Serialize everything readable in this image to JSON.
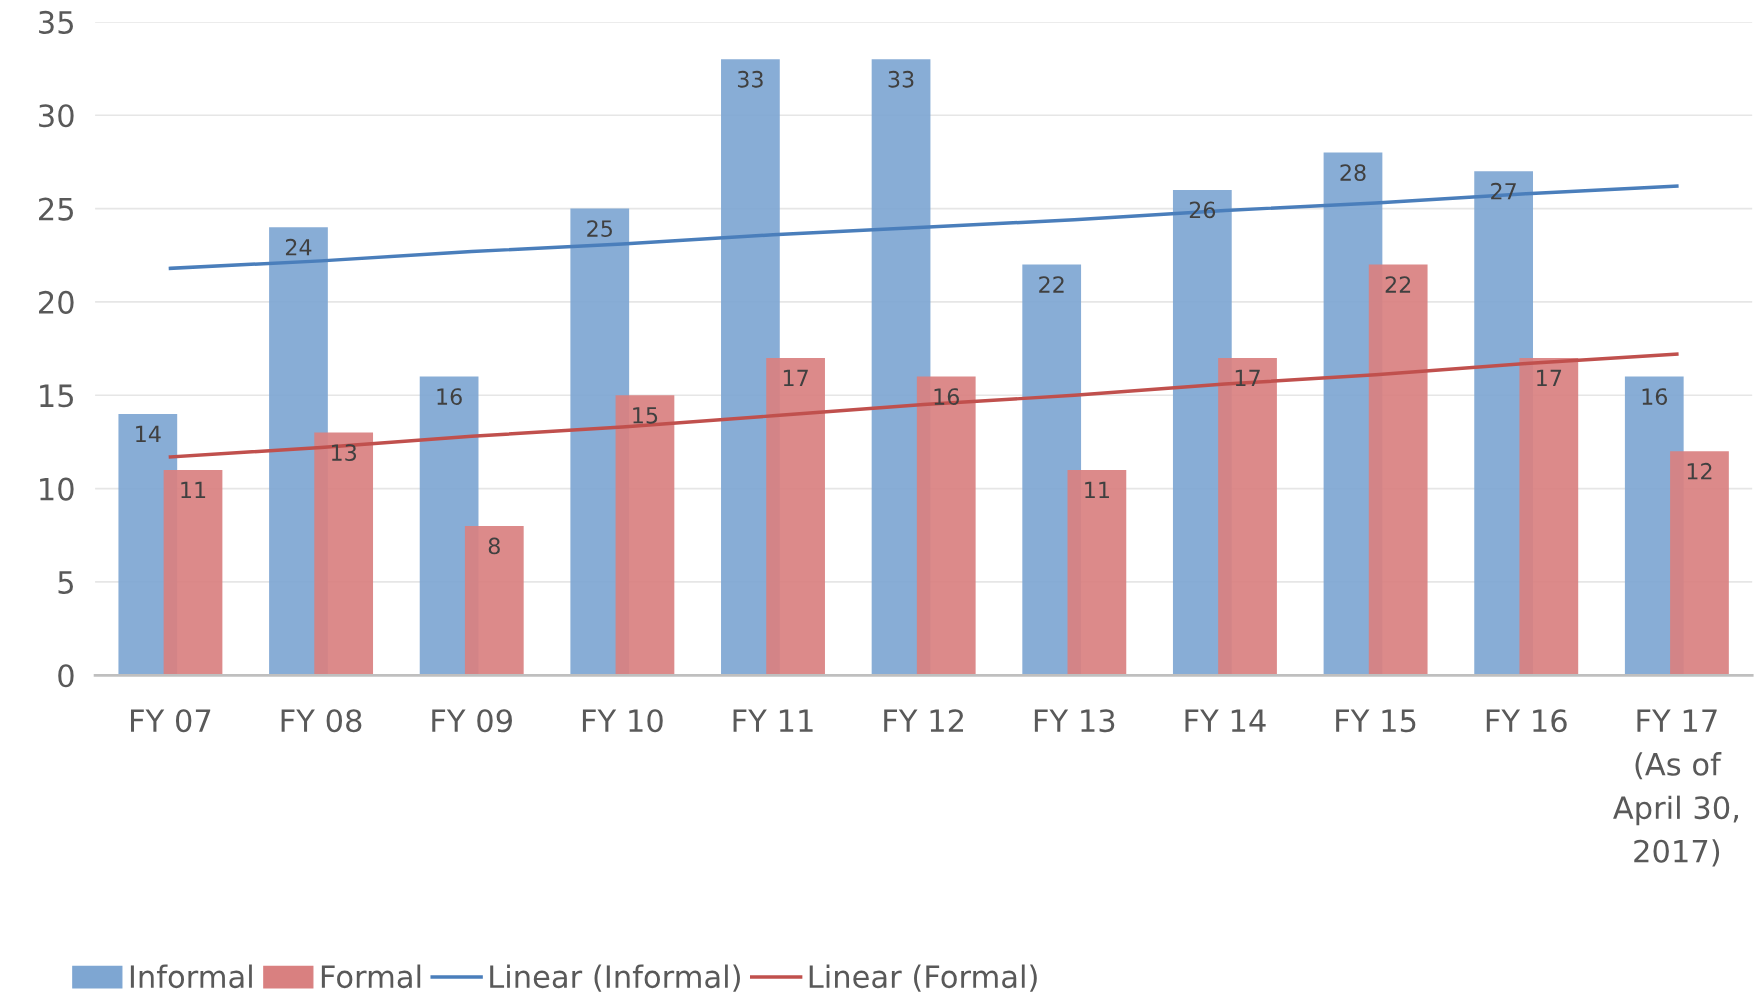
{
  "chart_data": {
    "type": "bar",
    "categories": [
      "FY 07",
      "FY 08",
      "FY 09",
      "FY 10",
      "FY 11",
      "FY 12",
      "FY 13",
      "FY 14",
      "FY 15",
      "FY 16",
      "FY 17\n(As of\nApril 30,\n2017)"
    ],
    "series": [
      {
        "name": "Informal",
        "color": "#7ea6d2",
        "values": [
          14,
          24,
          16,
          25,
          33,
          33,
          22,
          26,
          28,
          27,
          16
        ],
        "value_labels": [
          "14",
          "24",
          "16",
          "25",
          "33",
          "33",
          "22",
          "26",
          "28",
          "27",
          "16"
        ]
      },
      {
        "name": "Formal",
        "color": "#d98080",
        "values": [
          11,
          13,
          8,
          15,
          17,
          16,
          11,
          17,
          22,
          17,
          12
        ],
        "value_labels": [
          "11",
          "13",
          "8",
          "15",
          "17",
          "16",
          "11",
          "17",
          "22",
          "17",
          "12"
        ]
      },
      {
        "name": "Linear (Informal)",
        "type": "line",
        "color": "#4a7ebb",
        "values": [
          21.8,
          22.2,
          22.7,
          23.1,
          23.6,
          24.0,
          24.4,
          24.9,
          25.3,
          25.8,
          26.2
        ]
      },
      {
        "name": "Linear (Formal)",
        "type": "line",
        "color": "#c0504d",
        "values": [
          11.7,
          12.2,
          12.8,
          13.3,
          13.9,
          14.5,
          15.0,
          15.6,
          16.1,
          16.7,
          17.2
        ]
      }
    ],
    "ylim": [
      0,
      35
    ],
    "yticks": [
      0,
      5,
      10,
      15,
      20,
      25,
      30,
      35
    ],
    "grid": "y",
    "legend": "bottom left",
    "marker": "none",
    "line_style": "solid"
  }
}
